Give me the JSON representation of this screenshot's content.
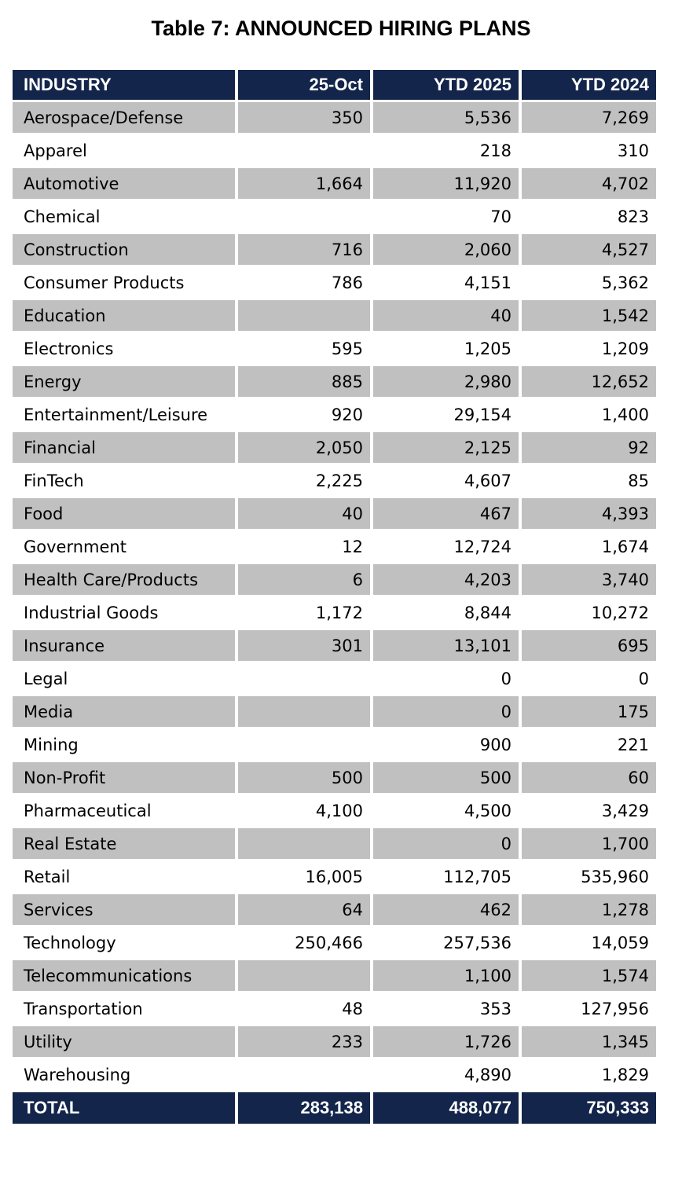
{
  "title": "Table 7: ANNOUNCED HIRING PLANS",
  "headers": [
    "INDUSTRY",
    "25-Oct",
    "YTD 2025",
    "YTD 2024"
  ],
  "rows": [
    [
      "Aerospace/Defense",
      "350",
      "5,536",
      "7,269"
    ],
    [
      "Apparel",
      "",
      "218",
      "310"
    ],
    [
      "Automotive",
      "1,664",
      "11,920",
      "4,702"
    ],
    [
      "Chemical",
      "",
      "70",
      "823"
    ],
    [
      "Construction",
      "716",
      "2,060",
      "4,527"
    ],
    [
      "Consumer Products",
      "786",
      "4,151",
      "5,362"
    ],
    [
      "Education",
      "",
      "40",
      "1,542"
    ],
    [
      "Electronics",
      "595",
      "1,205",
      "1,209"
    ],
    [
      "Energy",
      "885",
      "2,980",
      "12,652"
    ],
    [
      "Entertainment/Leisure",
      "920",
      "29,154",
      "1,400"
    ],
    [
      "Financial",
      "2,050",
      "2,125",
      "92"
    ],
    [
      "FinTech",
      "2,225",
      "4,607",
      "85"
    ],
    [
      "Food",
      "40",
      "467",
      "4,393"
    ],
    [
      "Government",
      "12",
      "12,724",
      "1,674"
    ],
    [
      "Health Care/Products",
      "6",
      "4,203",
      "3,740"
    ],
    [
      "Industrial Goods",
      "1,172",
      "8,844",
      "10,272"
    ],
    [
      "Insurance",
      "301",
      "13,101",
      "695"
    ],
    [
      "Legal",
      "",
      "0",
      "0"
    ],
    [
      "Media",
      "",
      "0",
      "175"
    ],
    [
      "Mining",
      "",
      "900",
      "221"
    ],
    [
      "Non-Profit",
      "500",
      "500",
      "60"
    ],
    [
      "Pharmaceutical",
      "4,100",
      "4,500",
      "3,429"
    ],
    [
      "Real Estate",
      "",
      "0",
      "1,700"
    ],
    [
      "Retail",
      "16,005",
      "112,705",
      "535,960"
    ],
    [
      "Services",
      "64",
      "462",
      "1,278"
    ],
    [
      "Technology",
      "250,466",
      "257,536",
      "14,059"
    ],
    [
      "Telecommunications",
      "",
      "1,100",
      "1,574"
    ],
    [
      "Transportation",
      "48",
      "353",
      "127,956"
    ],
    [
      "Utility",
      "233",
      "1,726",
      "1,345"
    ],
    [
      "Warehousing",
      "",
      "4,890",
      "1,829"
    ]
  ],
  "total": [
    "TOTAL",
    "283,138",
    "488,077",
    "750,333"
  ],
  "colors": {
    "header_bg": "#13254a",
    "header_text": "#ffffff",
    "shaded_row": "#c0c0c0",
    "plain_row": "#ffffff"
  }
}
